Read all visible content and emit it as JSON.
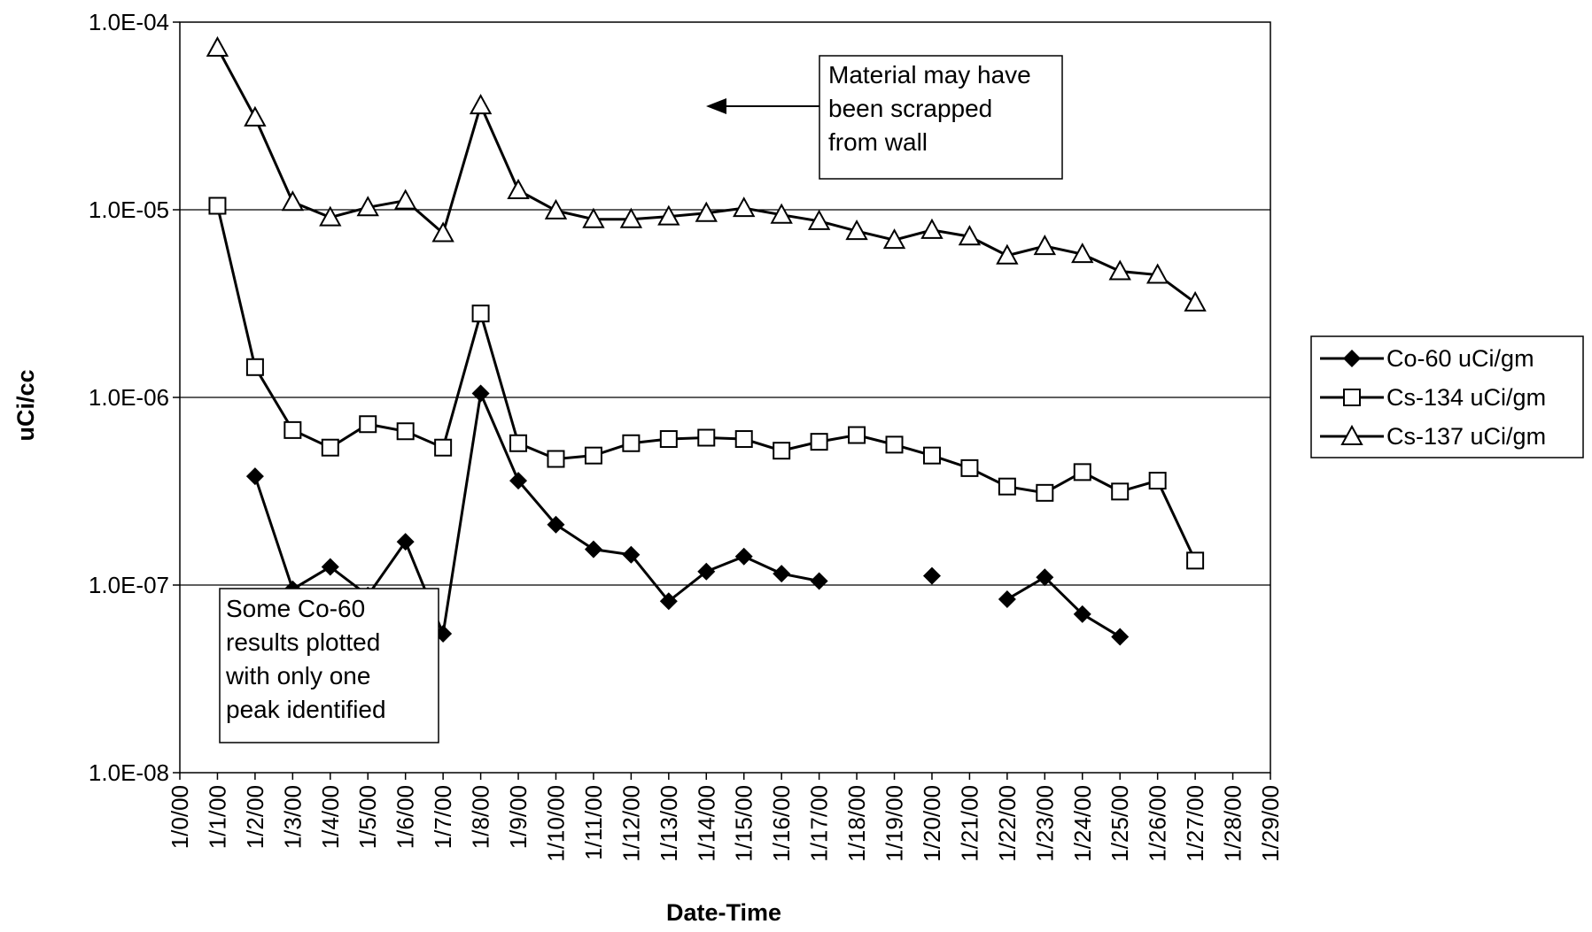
{
  "chart_data": {
    "type": "line",
    "title": "",
    "xlabel": "Date-Time",
    "ylabel": "uCi/cc",
    "y_scale": "log",
    "ylim": [
      1e-08,
      0.0001
    ],
    "y_ticks": [
      "1.0E-08",
      "1.0E-07",
      "1.0E-06",
      "1.0E-05",
      "1.0E-04"
    ],
    "x_ticks": [
      "1/0/00",
      "1/1/00",
      "1/2/00",
      "1/3/00",
      "1/4/00",
      "1/5/00",
      "1/6/00",
      "1/7/00",
      "1/8/00",
      "1/9/00",
      "1/10/00",
      "1/11/00",
      "1/12/00",
      "1/13/00",
      "1/14/00",
      "1/15/00",
      "1/16/00",
      "1/17/00",
      "1/18/00",
      "1/19/00",
      "1/20/00",
      "1/21/00",
      "1/22/00",
      "1/23/00",
      "1/24/00",
      "1/25/00",
      "1/26/00",
      "1/27/00",
      "1/28/00",
      "1/29/00"
    ],
    "grid": "horizontal major gridlines",
    "legend_position": "right",
    "series": [
      {
        "name": "Co-60 uCi/gm",
        "marker": "diamond",
        "x": [
          "1/2/00",
          "1/3/00",
          "1/4/00",
          "1/5/00",
          "1/6/00",
          "1/7/00",
          "1/8/00",
          "1/9/00",
          "1/10/00",
          "1/11/00",
          "1/12/00",
          "1/13/00",
          "1/14/00",
          "1/15/00",
          "1/16/00",
          "1/17/00",
          "1/18/00",
          "1/19/00",
          "1/20/00",
          "1/21/00",
          "1/22/00",
          "1/23/00",
          "1/24/00",
          "1/25/00"
        ],
        "values": [
          3.8e-07,
          9.5e-08,
          1.25e-07,
          8.8e-08,
          1.7e-07,
          5.5e-08,
          1.05e-06,
          3.6e-07,
          2.1e-07,
          1.55e-07,
          1.45e-07,
          8.2e-08,
          1.18e-07,
          1.42e-07,
          1.15e-07,
          1.05e-07,
          null,
          null,
          1.12e-07,
          null,
          8.4e-08,
          1.1e-07,
          7e-08,
          5.3e-08
        ]
      },
      {
        "name": "Cs-134 uCi/gm",
        "marker": "square",
        "x": [
          "1/1/00",
          "1/2/00",
          "1/3/00",
          "1/4/00",
          "1/5/00",
          "1/6/00",
          "1/7/00",
          "1/8/00",
          "1/9/00",
          "1/10/00",
          "1/11/00",
          "1/12/00",
          "1/13/00",
          "1/14/00",
          "1/15/00",
          "1/16/00",
          "1/17/00",
          "1/18/00",
          "1/19/00",
          "1/20/00",
          "1/21/00",
          "1/22/00",
          "1/23/00",
          "1/24/00",
          "1/25/00",
          "1/26/00",
          "1/27/00"
        ],
        "values": [
          1.05e-05,
          1.45e-06,
          6.7e-07,
          5.4e-07,
          7.2e-07,
          6.6e-07,
          5.4e-07,
          2.8e-06,
          5.7e-07,
          4.7e-07,
          4.9e-07,
          5.7e-07,
          6e-07,
          6.1e-07,
          6e-07,
          5.2e-07,
          5.8e-07,
          6.3e-07,
          5.6e-07,
          4.9e-07,
          4.2e-07,
          3.35e-07,
          3.1e-07,
          4e-07,
          3.15e-07,
          3.6e-07,
          1.35e-07
        ]
      },
      {
        "name": "Cs-137 uCi/gm",
        "marker": "triangle",
        "x": [
          "1/1/00",
          "1/2/00",
          "1/3/00",
          "1/4/00",
          "1/5/00",
          "1/6/00",
          "1/7/00",
          "1/8/00",
          "1/9/00",
          "1/10/00",
          "1/11/00",
          "1/12/00",
          "1/13/00",
          "1/14/00",
          "1/15/00",
          "1/16/00",
          "1/17/00",
          "1/18/00",
          "1/19/00",
          "1/20/00",
          "1/21/00",
          "1/22/00",
          "1/23/00",
          "1/24/00",
          "1/25/00",
          "1/26/00",
          "1/27/00"
        ],
        "values": [
          7.3e-05,
          3.1e-05,
          1.1e-05,
          9.1e-06,
          1.03e-05,
          1.12e-05,
          7.5e-06,
          3.6e-05,
          1.27e-05,
          9.9e-06,
          8.9e-06,
          8.9e-06,
          9.2e-06,
          9.6e-06,
          1.02e-05,
          9.4e-06,
          8.7e-06,
          7.7e-06,
          6.9e-06,
          7.8e-06,
          7.2e-06,
          5.7e-06,
          6.4e-06,
          5.8e-06,
          4.7e-06,
          4.5e-06,
          3.2e-06
        ]
      }
    ],
    "annotations": [
      {
        "lines": [
          "Material may have",
          "been scrapped",
          "from wall"
        ]
      },
      {
        "lines": [
          "Some Co-60",
          "results plotted",
          "with only one",
          "peak identified"
        ]
      }
    ]
  }
}
